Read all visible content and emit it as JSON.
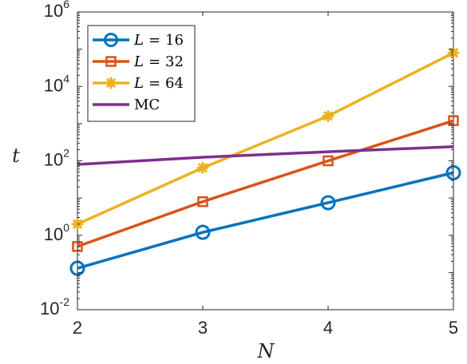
{
  "chart_data": {
    "type": "line",
    "xlabel": "N",
    "ylabel": "t",
    "x": [
      2,
      3,
      4,
      5
    ],
    "xlim": [
      2,
      5
    ],
    "ylim": [
      0.01,
      1000000
    ],
    "yscale": "log",
    "x_ticks": [
      "2",
      "3",
      "4",
      "5"
    ],
    "y_ticks": [
      {
        "base": "10",
        "exp": "-2",
        "value": 0.01
      },
      {
        "base": "10",
        "exp": "0",
        "value": 1
      },
      {
        "base": "10",
        "exp": "2",
        "value": 100
      },
      {
        "base": "10",
        "exp": "4",
        "value": 10000
      },
      {
        "base": "10",
        "exp": "6",
        "value": 1000000
      }
    ],
    "grid": false,
    "legend_position": "top-left",
    "series": [
      {
        "name_var": "L",
        "name_op": "=",
        "name_num": "16",
        "color": "#0072BD",
        "marker": "circle",
        "values": [
          0.13,
          1.2,
          7.5,
          48
        ]
      },
      {
        "name_var": "L",
        "name_op": "=",
        "name_num": "32",
        "color": "#D95319",
        "marker": "square",
        "values": [
          0.5,
          8,
          100,
          1200
        ]
      },
      {
        "name_var": "L",
        "name_op": "=",
        "name_num": "64",
        "color": "#EDB120",
        "marker": "asterisk",
        "values": [
          2,
          65,
          1600,
          80000
        ]
      },
      {
        "name_var": "",
        "name_op": "",
        "name_num": "MC",
        "color": "#7E2F8E",
        "marker": "none",
        "values": [
          80,
          125,
          175,
          240
        ]
      }
    ]
  }
}
